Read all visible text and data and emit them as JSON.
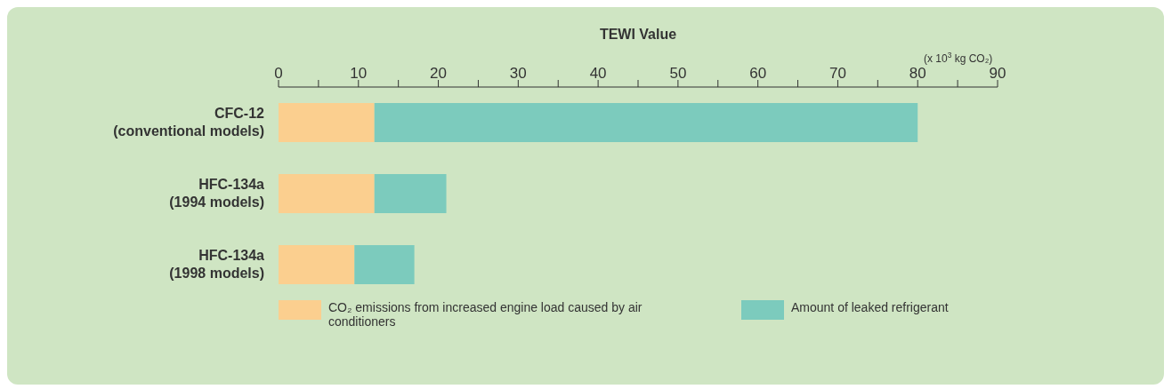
{
  "chart_data": {
    "type": "bar",
    "orientation": "horizontal",
    "stacked": true,
    "xlabel": "TEWI Value",
    "categories": [
      "CFC-12\n(conventional models)",
      "HFC-134a\n(1994 models)",
      "HFC-134a\n(1998 models)"
    ],
    "series": [
      {
        "name": "CO₂ emissions from increased engine load caused by air conditioners",
        "color": "#fbcf8f",
        "values": [
          12,
          12,
          9.5
        ]
      },
      {
        "name": "Amount of leaked refrigerant",
        "color": "#7ccbbd",
        "values": [
          68,
          9,
          7.5
        ]
      }
    ],
    "xlim": [
      0,
      90
    ],
    "xticks": [
      0,
      {
        "value": 5,
        "label": null
      },
      10,
      {
        "value": 15,
        "label": null
      },
      20,
      {
        "value": 25,
        "label": null
      },
      30,
      {
        "value": 35,
        "label": null
      },
      40,
      {
        "value": 45,
        "label": null
      },
      50,
      {
        "value": 55,
        "label": null
      },
      60,
      {
        "value": 65,
        "label": null
      },
      70,
      {
        "value": 75,
        "label": null
      },
      80,
      {
        "value": 85,
        "label": null
      },
      90
    ],
    "annotations": [
      "(x 10$^{3}$ kg CO₂)"
    ],
    "legend": "bottom",
    "grid": false
  }
}
